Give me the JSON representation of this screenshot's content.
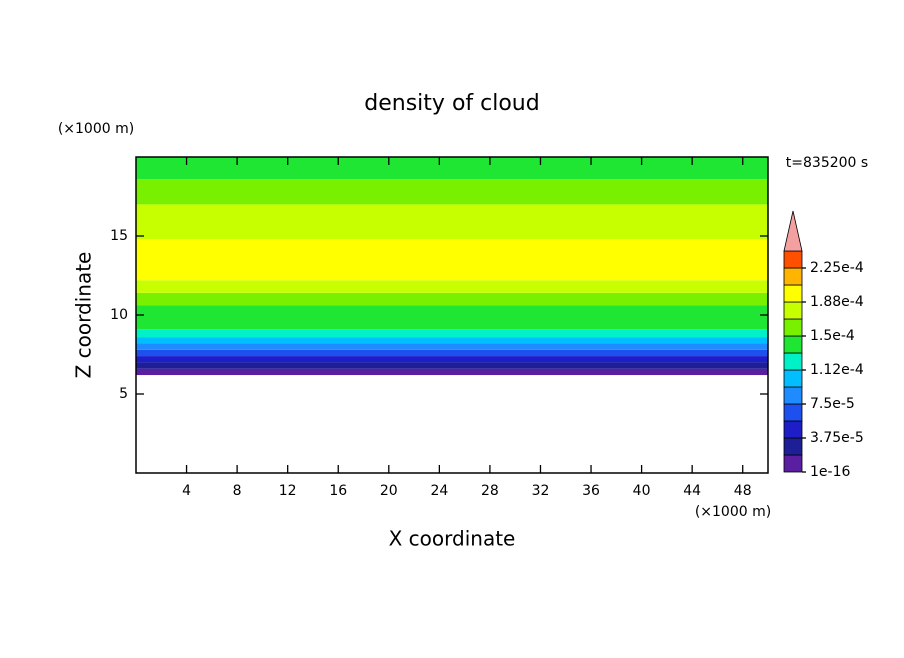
{
  "chart_data": {
    "type": "contour",
    "title": "density of cloud",
    "x_label": "X coordinate",
    "y_label": "Z coordinate",
    "x_unit": "(×1000 m)",
    "y_unit": "(×1000 m)",
    "time_label": "t=835200 s",
    "xlim": [
      0,
      50
    ],
    "ylim": [
      0,
      20
    ],
    "xticks": [
      4,
      8,
      12,
      16,
      20,
      24,
      28,
      32,
      36,
      40,
      44,
      48
    ],
    "yticks": [
      5,
      10,
      15
    ],
    "z_edges": [
      6.2,
      6.6,
      7.0,
      7.4,
      7.8,
      8.2,
      8.6,
      9.1,
      10.6,
      11.4,
      12.2,
      14.8,
      17.0,
      18.6,
      20
    ],
    "values": [
      1e-05,
      2.8e-05,
      4.7e-05,
      6.5e-05,
      8.5e-05,
      0.0001,
      0.00012,
      0.00014,
      0.00016,
      0.000175,
      0.00019,
      0.000175,
      0.00016,
      0.00014
    ],
    "levels": [
      1e-16,
      1.875e-05,
      3.75e-05,
      5.625e-05,
      7.5e-05,
      9.375e-05,
      0.0001125,
      0.00013125,
      0.00015,
      0.00016875,
      0.0001875,
      0.00020625,
      0.000225,
      0.00024375
    ],
    "colors": [
      "#5a1ea0",
      "#1e1e96",
      "#1e1ec8",
      "#1e50f0",
      "#1e8cff",
      "#00beff",
      "#00f0c8",
      "#1ee632",
      "#78f000",
      "#c8ff00",
      "#ffff00",
      "#ffb400",
      "#ff5000"
    ],
    "extend_color": "#f4a0a0",
    "cbar_ticks": [
      1e-16,
      {
        "value": 3.75e-05,
        "label": "3.75e-5"
      },
      {
        "value": 7.5e-05,
        "label": "7.5e-5"
      },
      {
        "value": 0.0001125,
        "label": "1.12e-4"
      },
      {
        "value": 0.00015,
        "label": "1.5e-4"
      },
      {
        "value": 0.0001875,
        "label": "1.88e-4"
      },
      {
        "value": 0.000225,
        "label": "2.25e-4"
      }
    ]
  }
}
